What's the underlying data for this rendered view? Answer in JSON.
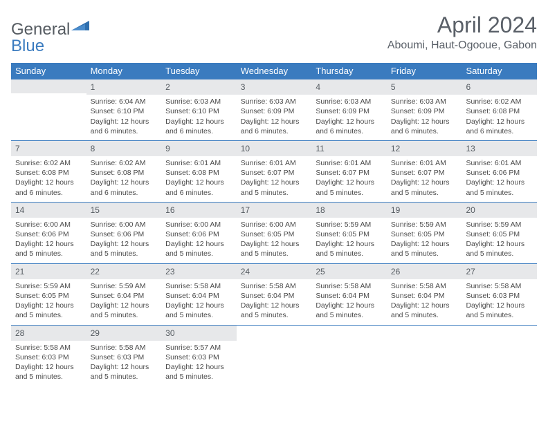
{
  "brand": {
    "name_gray": "General",
    "name_blue": "Blue"
  },
  "title": "April 2024",
  "location": "Aboumi, Haut-Ogooue, Gabon",
  "colors": {
    "header_bar": "#3a7bbf",
    "daynum_bg": "#e7e8ea",
    "text": "#4a4a4a",
    "title_text": "#5a6068",
    "week_border": "#3a7bbf",
    "white": "#ffffff"
  },
  "weekdays": [
    "Sunday",
    "Monday",
    "Tuesday",
    "Wednesday",
    "Thursday",
    "Friday",
    "Saturday"
  ],
  "weeks": [
    [
      {
        "n": "",
        "sunrise": "",
        "sunset": "",
        "daylight": ""
      },
      {
        "n": "1",
        "sunrise": "Sunrise: 6:04 AM",
        "sunset": "Sunset: 6:10 PM",
        "daylight": "Daylight: 12 hours and 6 minutes."
      },
      {
        "n": "2",
        "sunrise": "Sunrise: 6:03 AM",
        "sunset": "Sunset: 6:10 PM",
        "daylight": "Daylight: 12 hours and 6 minutes."
      },
      {
        "n": "3",
        "sunrise": "Sunrise: 6:03 AM",
        "sunset": "Sunset: 6:09 PM",
        "daylight": "Daylight: 12 hours and 6 minutes."
      },
      {
        "n": "4",
        "sunrise": "Sunrise: 6:03 AM",
        "sunset": "Sunset: 6:09 PM",
        "daylight": "Daylight: 12 hours and 6 minutes."
      },
      {
        "n": "5",
        "sunrise": "Sunrise: 6:03 AM",
        "sunset": "Sunset: 6:09 PM",
        "daylight": "Daylight: 12 hours and 6 minutes."
      },
      {
        "n": "6",
        "sunrise": "Sunrise: 6:02 AM",
        "sunset": "Sunset: 6:08 PM",
        "daylight": "Daylight: 12 hours and 6 minutes."
      }
    ],
    [
      {
        "n": "7",
        "sunrise": "Sunrise: 6:02 AM",
        "sunset": "Sunset: 6:08 PM",
        "daylight": "Daylight: 12 hours and 6 minutes."
      },
      {
        "n": "8",
        "sunrise": "Sunrise: 6:02 AM",
        "sunset": "Sunset: 6:08 PM",
        "daylight": "Daylight: 12 hours and 6 minutes."
      },
      {
        "n": "9",
        "sunrise": "Sunrise: 6:01 AM",
        "sunset": "Sunset: 6:08 PM",
        "daylight": "Daylight: 12 hours and 6 minutes."
      },
      {
        "n": "10",
        "sunrise": "Sunrise: 6:01 AM",
        "sunset": "Sunset: 6:07 PM",
        "daylight": "Daylight: 12 hours and 5 minutes."
      },
      {
        "n": "11",
        "sunrise": "Sunrise: 6:01 AM",
        "sunset": "Sunset: 6:07 PM",
        "daylight": "Daylight: 12 hours and 5 minutes."
      },
      {
        "n": "12",
        "sunrise": "Sunrise: 6:01 AM",
        "sunset": "Sunset: 6:07 PM",
        "daylight": "Daylight: 12 hours and 5 minutes."
      },
      {
        "n": "13",
        "sunrise": "Sunrise: 6:01 AM",
        "sunset": "Sunset: 6:06 PM",
        "daylight": "Daylight: 12 hours and 5 minutes."
      }
    ],
    [
      {
        "n": "14",
        "sunrise": "Sunrise: 6:00 AM",
        "sunset": "Sunset: 6:06 PM",
        "daylight": "Daylight: 12 hours and 5 minutes."
      },
      {
        "n": "15",
        "sunrise": "Sunrise: 6:00 AM",
        "sunset": "Sunset: 6:06 PM",
        "daylight": "Daylight: 12 hours and 5 minutes."
      },
      {
        "n": "16",
        "sunrise": "Sunrise: 6:00 AM",
        "sunset": "Sunset: 6:06 PM",
        "daylight": "Daylight: 12 hours and 5 minutes."
      },
      {
        "n": "17",
        "sunrise": "Sunrise: 6:00 AM",
        "sunset": "Sunset: 6:05 PM",
        "daylight": "Daylight: 12 hours and 5 minutes."
      },
      {
        "n": "18",
        "sunrise": "Sunrise: 5:59 AM",
        "sunset": "Sunset: 6:05 PM",
        "daylight": "Daylight: 12 hours and 5 minutes."
      },
      {
        "n": "19",
        "sunrise": "Sunrise: 5:59 AM",
        "sunset": "Sunset: 6:05 PM",
        "daylight": "Daylight: 12 hours and 5 minutes."
      },
      {
        "n": "20",
        "sunrise": "Sunrise: 5:59 AM",
        "sunset": "Sunset: 6:05 PM",
        "daylight": "Daylight: 12 hours and 5 minutes."
      }
    ],
    [
      {
        "n": "21",
        "sunrise": "Sunrise: 5:59 AM",
        "sunset": "Sunset: 6:05 PM",
        "daylight": "Daylight: 12 hours and 5 minutes."
      },
      {
        "n": "22",
        "sunrise": "Sunrise: 5:59 AM",
        "sunset": "Sunset: 6:04 PM",
        "daylight": "Daylight: 12 hours and 5 minutes."
      },
      {
        "n": "23",
        "sunrise": "Sunrise: 5:58 AM",
        "sunset": "Sunset: 6:04 PM",
        "daylight": "Daylight: 12 hours and 5 minutes."
      },
      {
        "n": "24",
        "sunrise": "Sunrise: 5:58 AM",
        "sunset": "Sunset: 6:04 PM",
        "daylight": "Daylight: 12 hours and 5 minutes."
      },
      {
        "n": "25",
        "sunrise": "Sunrise: 5:58 AM",
        "sunset": "Sunset: 6:04 PM",
        "daylight": "Daylight: 12 hours and 5 minutes."
      },
      {
        "n": "26",
        "sunrise": "Sunrise: 5:58 AM",
        "sunset": "Sunset: 6:04 PM",
        "daylight": "Daylight: 12 hours and 5 minutes."
      },
      {
        "n": "27",
        "sunrise": "Sunrise: 5:58 AM",
        "sunset": "Sunset: 6:03 PM",
        "daylight": "Daylight: 12 hours and 5 minutes."
      }
    ],
    [
      {
        "n": "28",
        "sunrise": "Sunrise: 5:58 AM",
        "sunset": "Sunset: 6:03 PM",
        "daylight": "Daylight: 12 hours and 5 minutes."
      },
      {
        "n": "29",
        "sunrise": "Sunrise: 5:58 AM",
        "sunset": "Sunset: 6:03 PM",
        "daylight": "Daylight: 12 hours and 5 minutes."
      },
      {
        "n": "30",
        "sunrise": "Sunrise: 5:57 AM",
        "sunset": "Sunset: 6:03 PM",
        "daylight": "Daylight: 12 hours and 5 minutes."
      },
      {
        "n": "",
        "sunrise": "",
        "sunset": "",
        "daylight": ""
      },
      {
        "n": "",
        "sunrise": "",
        "sunset": "",
        "daylight": ""
      },
      {
        "n": "",
        "sunrise": "",
        "sunset": "",
        "daylight": ""
      },
      {
        "n": "",
        "sunrise": "",
        "sunset": "",
        "daylight": ""
      }
    ]
  ]
}
